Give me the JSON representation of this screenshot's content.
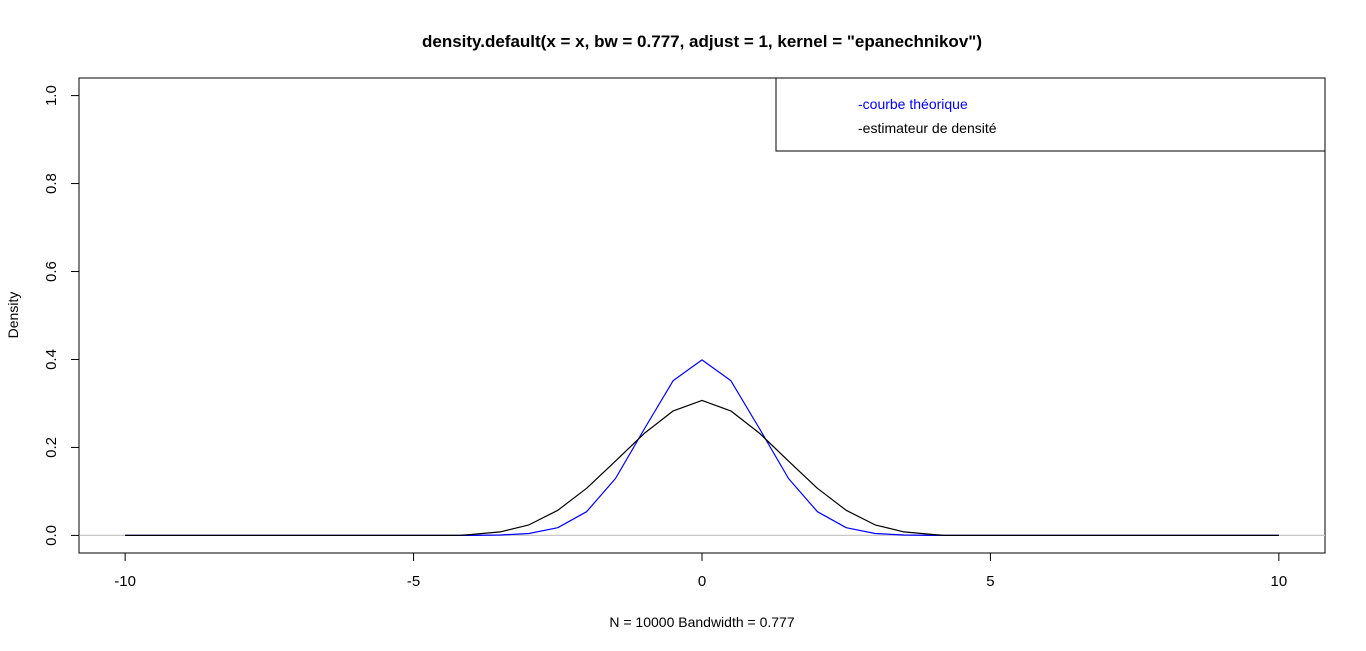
{
  "chart_data": {
    "type": "line",
    "title": "density.default(x = x, bw = 0.777, adjust = 1, kernel = \"epanechnikov\")",
    "xlabel": "N = 10000   Bandwidth = 0.777",
    "ylabel": "Density",
    "xlim": [
      -10.8,
      10.8
    ],
    "ylim": [
      -0.04,
      1.04
    ],
    "x_ticks": [
      -10,
      -5,
      0,
      5,
      10
    ],
    "x_tick_labels": [
      "-10",
      "-5",
      "0",
      "5",
      "10"
    ],
    "y_ticks": [
      0.0,
      0.2,
      0.4,
      0.6,
      0.8,
      1.0
    ],
    "y_tick_labels": [
      "0.0",
      "0.2",
      "0.4",
      "0.6",
      "0.8",
      "1.0"
    ],
    "grid": false,
    "zero_line_color": "#c8c8c8",
    "series": [
      {
        "color": "#0000ff",
        "x": [
          -10,
          -4,
          -3.5,
          -3,
          -2.5,
          -2,
          -1.5,
          -1,
          -0.5,
          0,
          0.5,
          1,
          1.5,
          2,
          2.5,
          3,
          3.5,
          4,
          10
        ],
        "y": [
          0,
          0.0001,
          0.0009,
          0.0044,
          0.0175,
          0.054,
          0.1295,
          0.242,
          0.352,
          0.399,
          0.352,
          0.242,
          0.1295,
          0.054,
          0.0175,
          0.0044,
          0.0009,
          0.0001,
          0
        ]
      },
      {
        "color": "#000000",
        "x": [
          -10,
          -4.2,
          -4,
          -3.5,
          -3,
          -2.5,
          -2,
          -1.5,
          -1,
          -0.5,
          0,
          0.5,
          1,
          1.5,
          2,
          2.5,
          3,
          3.5,
          4,
          4.2,
          10
        ],
        "y": [
          0,
          0,
          0.002,
          0.008,
          0.024,
          0.057,
          0.107,
          0.169,
          0.232,
          0.283,
          0.307,
          0.283,
          0.232,
          0.169,
          0.107,
          0.057,
          0.024,
          0.008,
          0.002,
          0,
          0
        ]
      }
    ],
    "legend": {
      "position": "top-right",
      "entries": [
        {
          "label": "-courbe théorique",
          "color": "#0000ff"
        },
        {
          "label": "-estimateur de densité",
          "color": "#000000"
        }
      ]
    }
  }
}
